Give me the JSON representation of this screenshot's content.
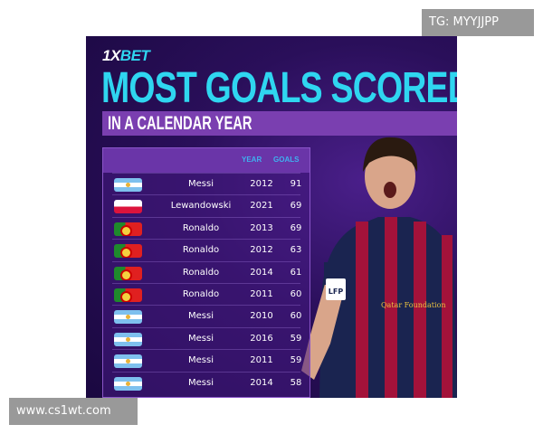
{
  "brand": {
    "logo_prefix": "1X",
    "logo_suffix": "BET"
  },
  "title": "MOST GOALS SCORED",
  "subtitle": "IN A CALENDAR YEAR",
  "table": {
    "headers": {
      "year": "YEAR",
      "goals": "GOALS"
    },
    "rows": [
      {
        "flag": "argentina",
        "name": "Messi",
        "year": "2012",
        "goals": "91"
      },
      {
        "flag": "poland",
        "name": "Lewandowski",
        "year": "2021",
        "goals": "69"
      },
      {
        "flag": "portugal",
        "name": "Ronaldo",
        "year": "2013",
        "goals": "69"
      },
      {
        "flag": "portugal",
        "name": "Ronaldo",
        "year": "2012",
        "goals": "63"
      },
      {
        "flag": "portugal",
        "name": "Ronaldo",
        "year": "2014",
        "goals": "61"
      },
      {
        "flag": "portugal",
        "name": "Ronaldo",
        "year": "2011",
        "goals": "60"
      },
      {
        "flag": "argentina",
        "name": "Messi",
        "year": "2010",
        "goals": "60"
      },
      {
        "flag": "argentina",
        "name": "Messi",
        "year": "2016",
        "goals": "59"
      },
      {
        "flag": "argentina",
        "name": "Messi",
        "year": "2011",
        "goals": "59"
      },
      {
        "flag": "argentina",
        "name": "Messi",
        "year": "2014",
        "goals": "58"
      }
    ]
  },
  "player_image": {
    "shirt_text": "Qatar Foundation",
    "badge": "LFP"
  },
  "watermarks": {
    "top": "TG: MYYJJPP",
    "bottom": "www.cs1wt.com"
  },
  "colors": {
    "title": "#2fd6f0",
    "band": "#7a3fb0",
    "background": "#2a0f5a"
  }
}
